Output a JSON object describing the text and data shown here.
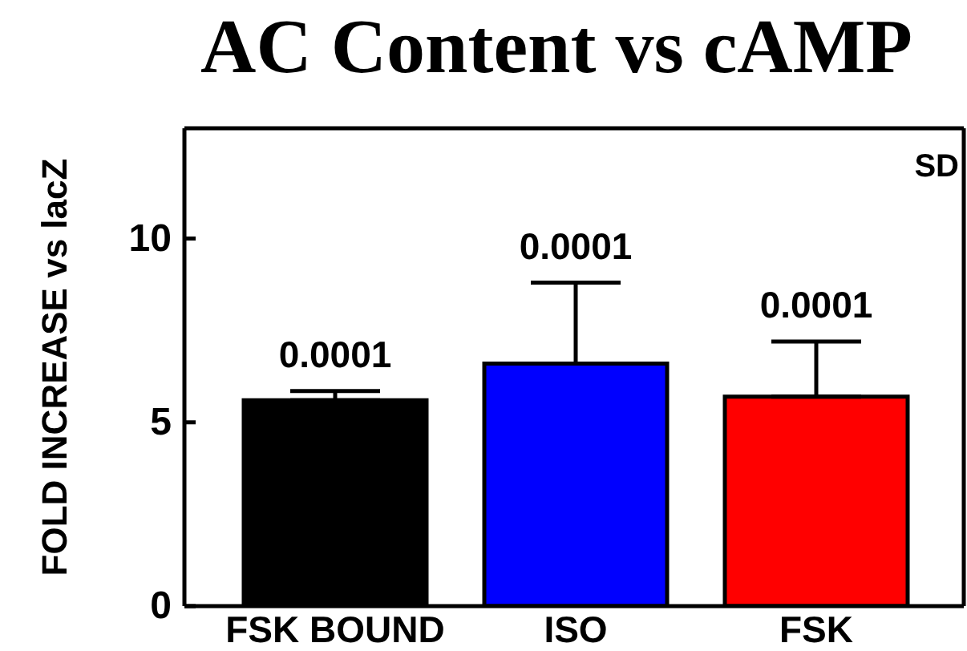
{
  "chart_data": {
    "type": "bar",
    "title": "AC Content vs cAMP",
    "ylabel": "FOLD INCREASE vs lacZ",
    "categories": [
      "FSK BOUND",
      "ISO",
      "FSK"
    ],
    "values": [
      5.6,
      6.6,
      5.7
    ],
    "colors": [
      "#000000",
      "#0000ff",
      "#ff0000"
    ],
    "errors": [
      [
        5.6,
        5.85
      ],
      [
        6.6,
        8.8
      ],
      [
        5.7,
        7.2
      ]
    ],
    "ylim": [
      0,
      13
    ],
    "yticks": [
      0,
      5,
      10
    ],
    "grid": false,
    "legend": false,
    "annotations": [
      "SD",
      {
        "text": "0.0001",
        "x": "FSK BOUND",
        "y": 5.85
      },
      {
        "text": "0.0001",
        "x": "ISO",
        "y": 8.8
      },
      {
        "text": "0.0001",
        "x": "FSK",
        "y": 7.2
      }
    ]
  }
}
